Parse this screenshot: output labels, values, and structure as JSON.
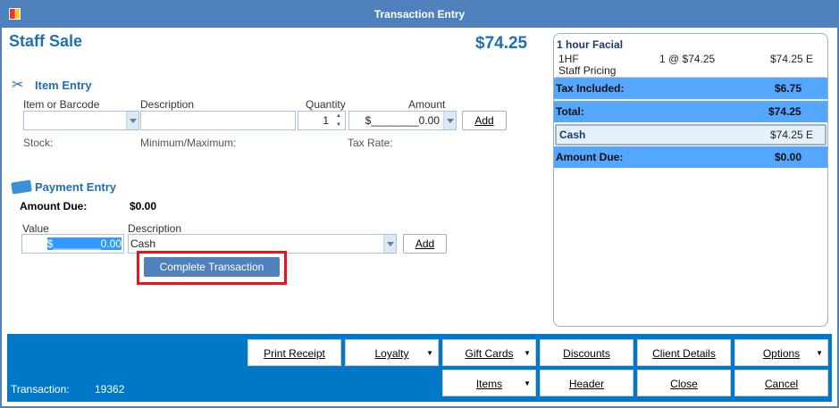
{
  "window": {
    "title": "Transaction Entry"
  },
  "header": {
    "title": "Staff Sale",
    "total": "$74.25"
  },
  "item_entry": {
    "heading": "Item Entry",
    "item_label": "Item or Barcode",
    "description_label": "Description",
    "quantity_label": "Quantity",
    "amount_label": "Amount",
    "item_value": "",
    "description_value": "",
    "quantity_value": "1",
    "amount_value": "$________0.00",
    "add_label": "Add",
    "stock_label": "Stock:",
    "minmax_label": "Minimum/Maximum:",
    "tax_rate_label": "Tax Rate:"
  },
  "payment_entry": {
    "heading": "Payment Entry",
    "amount_due_label": "Amount Due:",
    "amount_due_value": "$0.00",
    "value_label": "Value",
    "description_label": "Description",
    "value_value": "$________0.00",
    "description_value": "Cash",
    "add_label": "Add",
    "complete_label": "Complete Transaction"
  },
  "summary": {
    "item_name": "1 hour Facial",
    "item_code": "1HF",
    "item_qty_price": "1 @ $74.25",
    "item_total": "$74.25 E",
    "item_note": "Staff Pricing",
    "tax_label": "Tax Included:",
    "tax_value": "$6.75",
    "total_label": "Total:",
    "total_value": "$74.25",
    "payment_label": "Cash",
    "payment_value": "$74.25 E",
    "due_label": "Amount Due:",
    "due_value": "$0.00"
  },
  "footer": {
    "transaction_label": "Transaction:",
    "transaction_number": "19362",
    "buttons": [
      "Print Receipt",
      "Loyalty",
      "Gift Cards",
      "Discounts",
      "Client Details",
      "Options",
      "Items",
      "Header",
      "Close",
      "Cancel"
    ]
  },
  "colors": {
    "titlebar": "#4f81bd",
    "accent": "#1f6fb2",
    "band": "#55a6ff",
    "footer": "#0078c8",
    "highlight": "#e8141c"
  }
}
